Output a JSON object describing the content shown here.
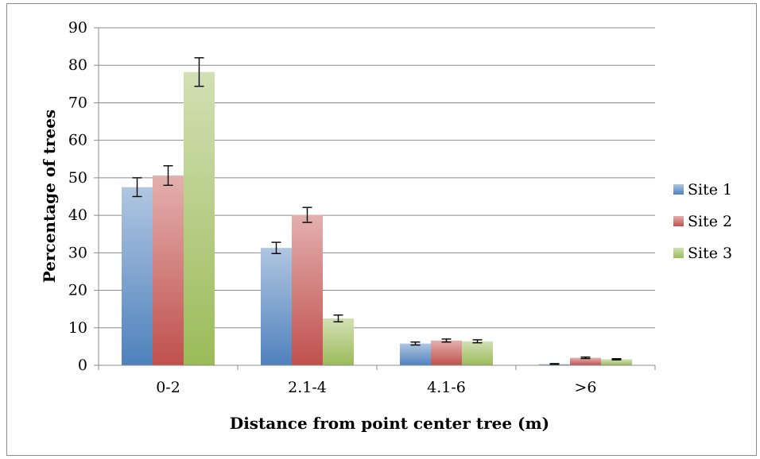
{
  "chart_data": {
    "type": "bar",
    "title": "",
    "xlabel": "Distance from point center tree (m)",
    "ylabel": "Percentage of trees",
    "categories": [
      "0-2",
      "2.1-4",
      "4.1-6",
      ">6"
    ],
    "ylim": [
      0,
      90
    ],
    "yticks": [
      "0",
      "10",
      "20",
      "30",
      "40",
      "50",
      "60",
      "70",
      "80",
      "90"
    ],
    "grid": true,
    "legend_position": "right",
    "error_bars": true,
    "series": [
      {
        "name": "Site 1",
        "color": "#4f81bd",
        "values": [
          47.5,
          31.3,
          5.8,
          0.3
        ],
        "errors": [
          2.5,
          1.5,
          0.4,
          0.15
        ]
      },
      {
        "name": "Site 2",
        "color": "#c0504d",
        "values": [
          50.6,
          40.1,
          6.6,
          2.0
        ],
        "errors": [
          2.6,
          2.0,
          0.4,
          0.2
        ]
      },
      {
        "name": "Site 3",
        "color": "#9bbb59",
        "values": [
          78.2,
          12.5,
          6.4,
          1.6
        ],
        "errors": [
          3.8,
          0.9,
          0.4,
          0.15
        ]
      }
    ]
  }
}
